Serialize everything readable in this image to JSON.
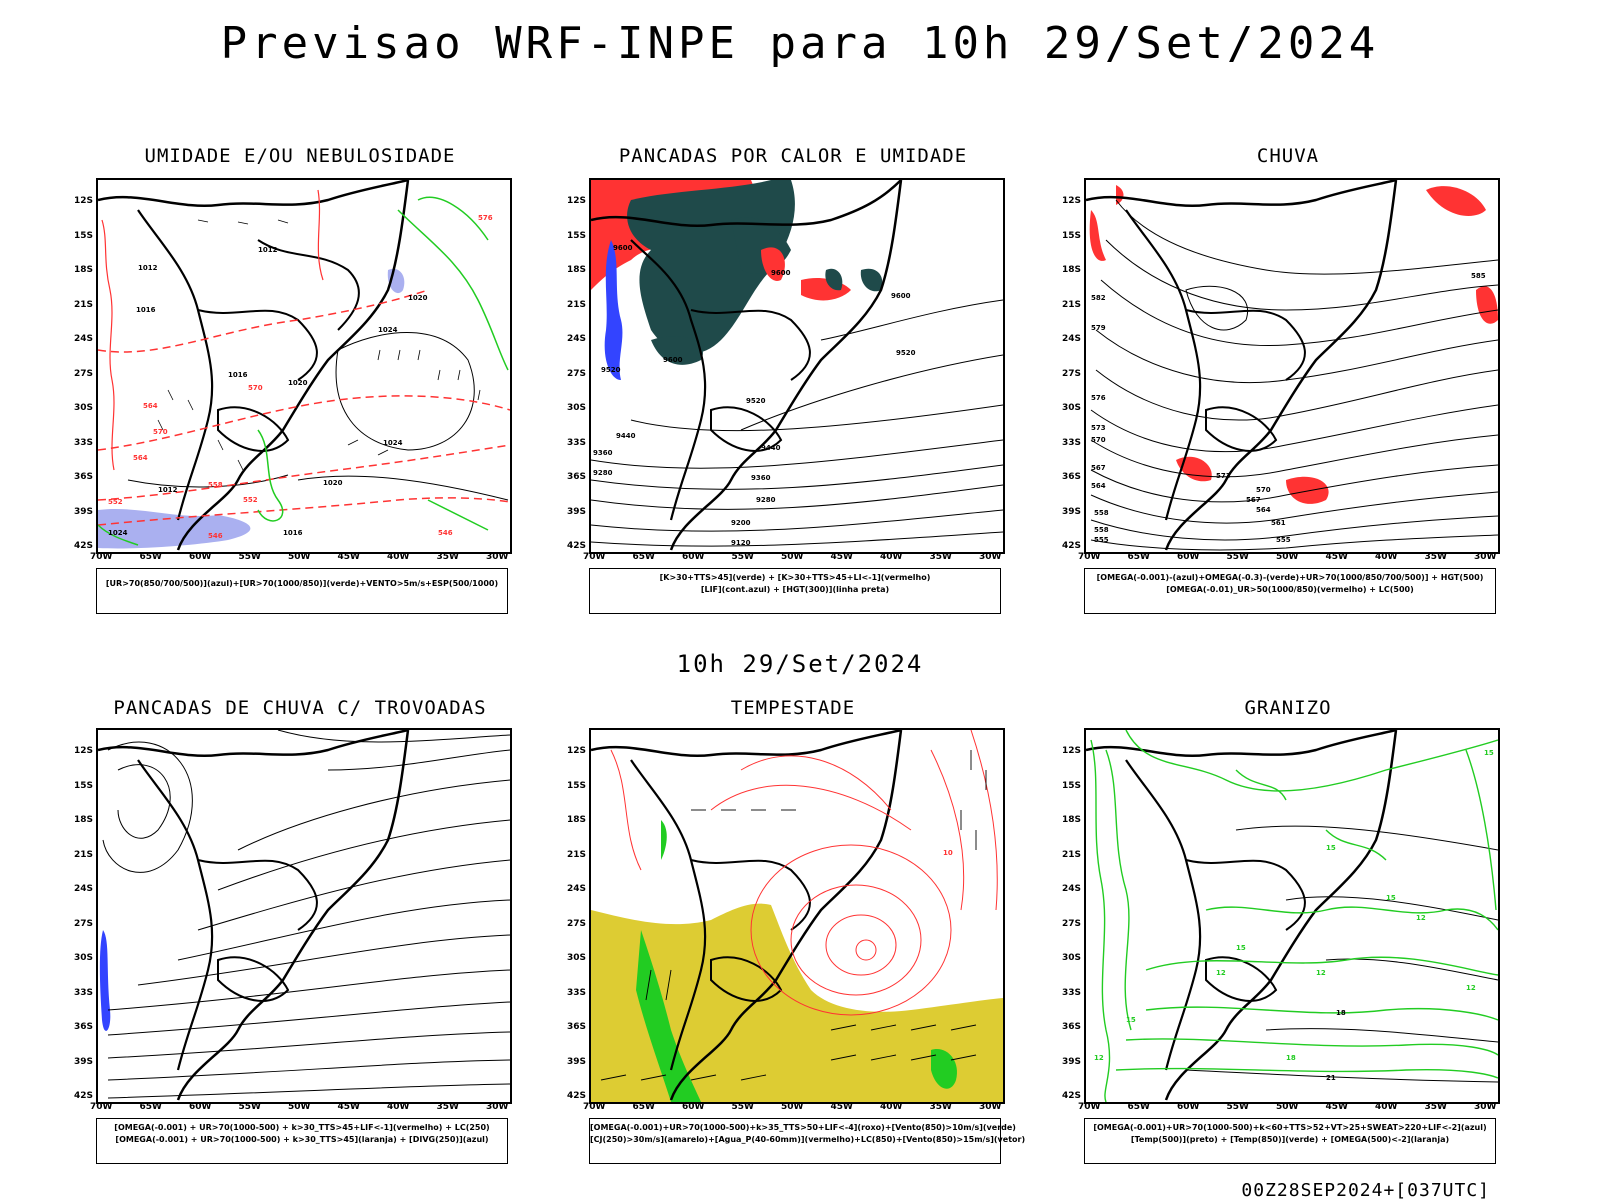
{
  "title": "Previsao WRF-INPE  para 10h 29/Set/2024",
  "mid_date": "10h 29/Set/2024",
  "footer": "00Z28SEP2024+[037UTC]",
  "lat_labels": [
    "12S",
    "15S",
    "18S",
    "21S",
    "24S",
    "27S",
    "30S",
    "33S",
    "36S",
    "39S",
    "42S"
  ],
  "lon_labels": [
    "70W",
    "65W",
    "60W",
    "55W",
    "50W",
    "45W",
    "40W",
    "35W",
    "30W"
  ],
  "panels": [
    {
      "title": "UMIDADE E/OU NEBULOSIDADE",
      "legend": [
        "[UR>70(850/700/500)](azul)+[UR>70(1000/850)](verde)+VENTO>5m/s+ESP(500/1000)"
      ],
      "contour_labels": [
        "1012",
        "1016",
        "1012",
        "1020",
        "1024",
        "1024",
        "1016",
        "1016",
        "1012",
        "1020",
        "576",
        "570",
        "564",
        "558",
        "552",
        "546",
        "1024",
        "570",
        "564",
        "552",
        "546",
        "1020"
      ]
    },
    {
      "title": "PANCADAS POR CALOR E UMIDADE",
      "legend": [
        "[K>30+TTS>45](verde) + [K>30+TTS>45+LI<-1](vermelho)",
        "[LIF](cont.azul) + [HGT(300)](linha preta)"
      ],
      "contour_labels": [
        "9600",
        "9600",
        "9600",
        "9520",
        "9520",
        "9440",
        "9360",
        "9280",
        "9200",
        "9120",
        "9520",
        "9440",
        "9360",
        "9280",
        "9600"
      ]
    },
    {
      "title": "CHUVA",
      "legend": [
        "[OMEGA(-0.001)-(azul)+OMEGA(-0.3)-(verde)+UR>70(1000/850/700/500)] + HGT(500)",
        "[OMEGA(-0.01)_UR>50(1000/850)(vermelho) + LC(500)"
      ],
      "contour_labels": [
        "585",
        "582",
        "579",
        "576",
        "573",
        "570",
        "567",
        "564",
        "561",
        "558",
        "555",
        "573",
        "570",
        "567",
        "564",
        "558",
        "555"
      ]
    },
    {
      "title": "PANCADAS DE CHUVA C/ TROVOADAS",
      "legend": [
        "[OMEGA(-0.001) + UR>70(1000-500) + k>30_TTS>45+LIF<-1](vermelho) + LC(250)",
        "[OMEGA(-0.001) + UR>70(1000-500) + k>30_TTS>45](laranja) + [DIVG(250)](azul)"
      ],
      "contour_labels": []
    },
    {
      "title": "TEMPESTADE",
      "legend": [
        "[OMEGA(-0.001)+UR>70(1000-500)+k>35_TTS>50+LIF<-4](roxo)+[Vento(850)>10m/s](verde)",
        "[CJ(250)>30m/s](amarelo)+[Agua_P(40-60mm)](vermelho)+LC(850)+[Vento(850)>15m/s](vetor)"
      ],
      "contour_labels": [
        "10"
      ]
    },
    {
      "title": "GRANIZO",
      "legend": [
        "[OMEGA(-0.001)+UR>70(1000-500)+k<60+TTS>52+VT>25+SWEAT>220+LIF<-2](azul)",
        "[Temp(500)](preto) + [Temp(850)](verde) + [OMEGA(500)<-2](laranja)"
      ],
      "contour_labels": [
        "15",
        "15",
        "12",
        "12",
        "15",
        "12",
        "15",
        "18",
        "21",
        "18",
        "12",
        "15",
        "12"
      ]
    }
  ],
  "colors": {
    "black": "#000000",
    "red": "#ff3333",
    "green": "#22cc22",
    "blue": "#3344ff",
    "dark_teal": "#1f4a4a",
    "yellow": "#ddcc33",
    "lavender": "#aab0f0",
    "orange": "#ff8800"
  }
}
